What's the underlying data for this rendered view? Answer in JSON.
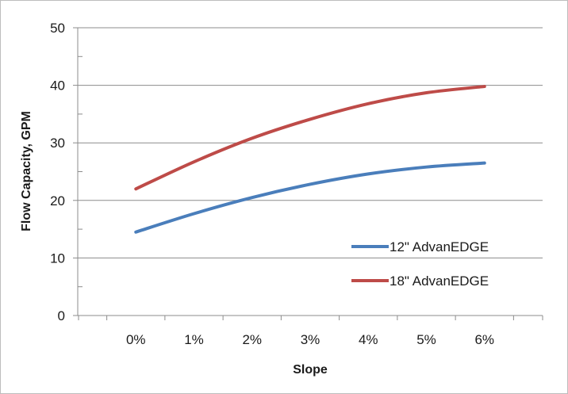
{
  "chart_data": {
    "type": "line",
    "title": "",
    "xlabel": "Slope",
    "ylabel": "Flow Capacity, GPM",
    "x": [
      0,
      1,
      2,
      3,
      4,
      5,
      6
    ],
    "x_tick_labels": [
      "0%",
      "1%",
      "2%",
      "3%",
      "4%",
      "5%",
      "6%"
    ],
    "ylim": [
      0,
      50
    ],
    "y_ticks": [
      0,
      10,
      20,
      30,
      40,
      50
    ],
    "y_tick_labels": [
      "0",
      "10",
      "20",
      "30",
      "40",
      "50"
    ],
    "grid": "horizontal",
    "legend_position": "bottom-right",
    "series": [
      {
        "name": "12\" AdvanEDGE",
        "color": "#4a7ebb",
        "values": [
          14.5,
          17.7,
          20.5,
          22.8,
          24.6,
          25.8,
          26.5
        ]
      },
      {
        "name": "18\" AdvanEDGE",
        "color": "#be4b48",
        "values": [
          22.0,
          26.7,
          30.8,
          34.1,
          36.8,
          38.7,
          39.8
        ]
      }
    ]
  }
}
